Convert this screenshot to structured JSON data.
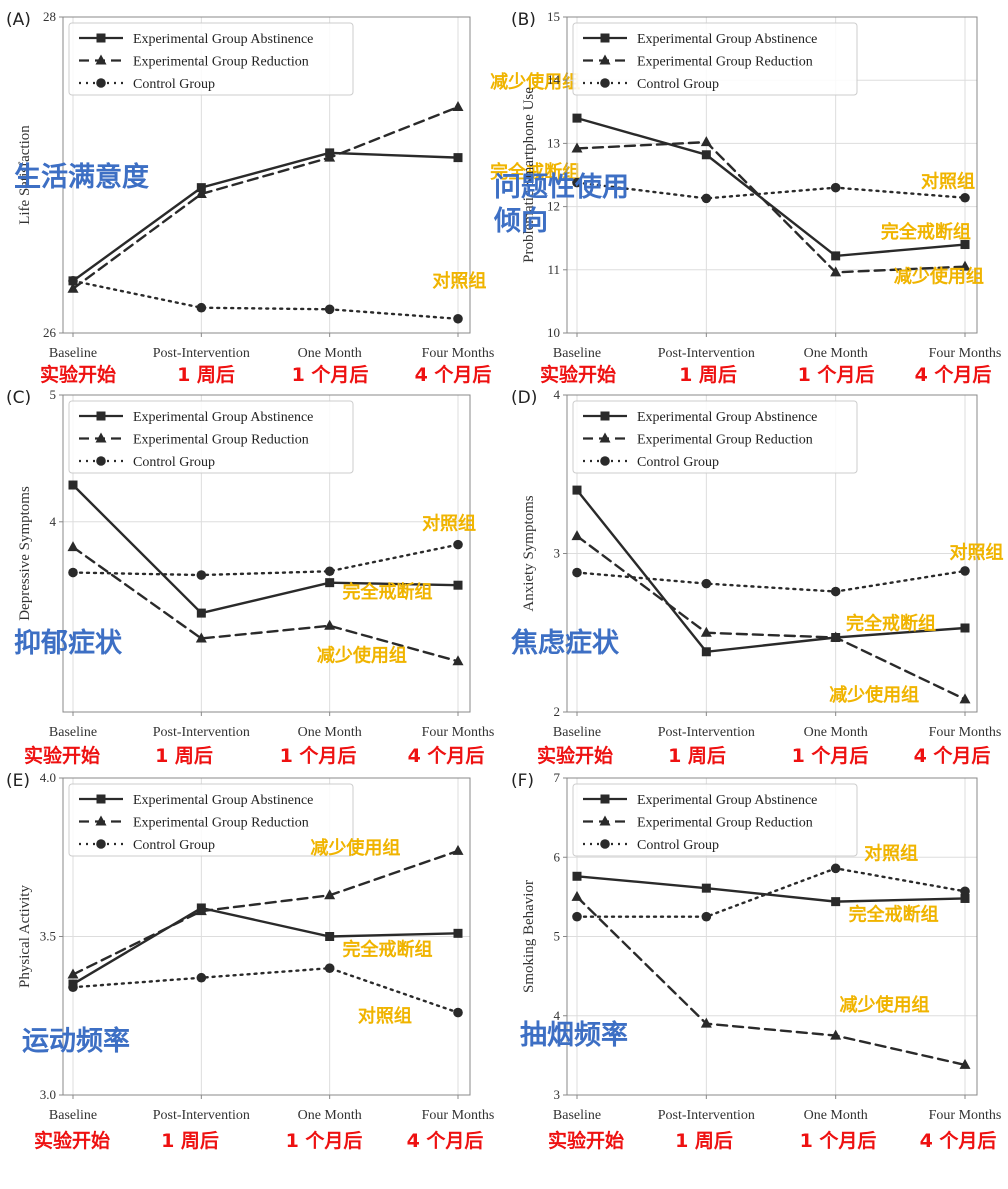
{
  "legend_entries": [
    "Experimental Group Abstinence",
    "Experimental Group Reduction",
    "Control Group"
  ],
  "time_labels": [
    "实验开始",
    "1 周后",
    "1 个月后",
    "4 个月后"
  ],
  "colors": {
    "series": "#2a2a2a",
    "grid": "#dddddd",
    "axis": "#888888",
    "annotation": "#f0b400",
    "timeline": "#ee1111",
    "overlay_title": "#3d6fc4"
  },
  "chart_data": [
    {
      "type": "line",
      "panel_label": "(A)",
      "ylabel": "Life Satisfaction",
      "overlay_title": "生活满意度",
      "categories": [
        "Baseline",
        "Post-Intervention",
        "One Month",
        "Four Months"
      ],
      "ylim": [
        26,
        28
      ],
      "yticks": [
        "28",
        "26"
      ],
      "yticks_values": [
        28,
        26
      ],
      "grid": true,
      "legend_position": "top-left",
      "series": [
        {
          "name": "Experimental Group Abstinence",
          "values": [
            26.33,
            26.92,
            27.14,
            27.11
          ]
        },
        {
          "name": "Experimental Group Reduction",
          "values": [
            26.28,
            26.88,
            27.11,
            27.43
          ]
        },
        {
          "name": "Control Group",
          "values": [
            26.33,
            26.16,
            26.15,
            26.09
          ]
        }
      ],
      "annotations": [
        {
          "text": "减少使用组",
          "x": 3.25,
          "y": 27.55
        },
        {
          "text": "完全戒断组",
          "x": 3.25,
          "y": 26.98
        },
        {
          "text": "对照组",
          "x": 2.8,
          "y": 26.29
        }
      ]
    },
    {
      "type": "line",
      "panel_label": "(B)",
      "ylabel": "Problematic Smartphone Use",
      "overlay_title": "问题性使用\n倾向",
      "categories": [
        "Baseline",
        "Post-Intervention",
        "One Month",
        "Four Months"
      ],
      "ylim": [
        10,
        15
      ],
      "yticks": [
        "15",
        "14",
        "13",
        "12",
        "11",
        "10"
      ],
      "yticks_values": [
        15,
        14,
        13,
        12,
        11,
        10
      ],
      "grid": true,
      "legend_position": "top-left",
      "series": [
        {
          "name": "Experimental Group Abstinence",
          "values": [
            13.4,
            12.82,
            11.22,
            11.4
          ]
        },
        {
          "name": "Experimental Group Reduction",
          "values": [
            12.92,
            13.02,
            10.96,
            11.05
          ]
        },
        {
          "name": "Control Group",
          "values": [
            12.38,
            12.13,
            12.3,
            12.14
          ]
        }
      ],
      "annotations": [
        {
          "text": "对照组",
          "x": 2.66,
          "y": 12.3
        },
        {
          "text": "完全戒断组",
          "x": 2.35,
          "y": 11.5
        },
        {
          "text": "减少使用组",
          "x": 2.45,
          "y": 10.8
        }
      ]
    },
    {
      "type": "line",
      "panel_label": "(C)",
      "ylabel": "Depressive Symptoms",
      "overlay_title": "抑郁症状",
      "categories": [
        "Baseline",
        "Post-Intervention",
        "One Month",
        "Four Months"
      ],
      "ylim": [
        2.5,
        5
      ],
      "yticks": [
        "5",
        "4"
      ],
      "yticks_values": [
        5,
        4
      ],
      "grid": true,
      "legend_position": "top-left",
      "series": [
        {
          "name": "Experimental Group Abstinence",
          "values": [
            4.29,
            3.28,
            3.52,
            3.5
          ]
        },
        {
          "name": "Experimental Group Reduction",
          "values": [
            3.8,
            3.08,
            3.18,
            2.9
          ]
        },
        {
          "name": "Control Group",
          "values": [
            3.6,
            3.58,
            3.61,
            3.82
          ]
        }
      ],
      "annotations": [
        {
          "text": "对照组",
          "x": 2.72,
          "y": 3.94
        },
        {
          "text": "完全戒断组",
          "x": 2.1,
          "y": 3.4
        },
        {
          "text": "减少使用组",
          "x": 1.9,
          "y": 2.9
        }
      ]
    },
    {
      "type": "line",
      "panel_label": "(D)",
      "ylabel": "Anxiety Symptoms",
      "overlay_title": "焦虑症状",
      "categories": [
        "Baseline",
        "Post-Intervention",
        "One Month",
        "Four Months"
      ],
      "ylim": [
        2,
        4
      ],
      "yticks": [
        "4",
        "3",
        "2"
      ],
      "yticks_values": [
        4,
        3,
        2
      ],
      "grid": true,
      "legend_position": "top-left",
      "series": [
        {
          "name": "Experimental Group Abstinence",
          "values": [
            3.4,
            2.38,
            2.47,
            2.53
          ]
        },
        {
          "name": "Experimental Group Reduction",
          "values": [
            3.11,
            2.5,
            2.47,
            2.08
          ]
        },
        {
          "name": "Control Group",
          "values": [
            2.88,
            2.81,
            2.76,
            2.89
          ]
        }
      ],
      "annotations": [
        {
          "text": "对照组",
          "x": 2.88,
          "y": 2.97
        },
        {
          "text": "完全戒断组",
          "x": 2.08,
          "y": 2.52
        },
        {
          "text": "减少使用组",
          "x": 1.95,
          "y": 2.07
        }
      ]
    },
    {
      "type": "line",
      "panel_label": "(E)",
      "ylabel": "Physical Activity",
      "overlay_title": "运动频率",
      "categories": [
        "Baseline",
        "Post-Intervention",
        "One Month",
        "Four Months"
      ],
      "ylim": [
        3.0,
        4.0
      ],
      "yticks": [
        "4.0",
        "3.5",
        "3.0"
      ],
      "yticks_values": [
        4.0,
        3.5,
        3.0
      ],
      "grid": true,
      "legend_position": "top-left",
      "series": [
        {
          "name": "Experimental Group Abstinence",
          "values": [
            3.35,
            3.59,
            3.5,
            3.51
          ]
        },
        {
          "name": "Experimental Group Reduction",
          "values": [
            3.38,
            3.58,
            3.63,
            3.77
          ]
        },
        {
          "name": "Control Group",
          "values": [
            3.34,
            3.37,
            3.4,
            3.26
          ]
        }
      ],
      "annotations": [
        {
          "text": "减少使用组",
          "x": 1.85,
          "y": 3.76
        },
        {
          "text": "完全戒断组",
          "x": 2.1,
          "y": 3.44
        },
        {
          "text": "对照组",
          "x": 2.22,
          "y": 3.23
        }
      ]
    },
    {
      "type": "line",
      "panel_label": "(F)",
      "ylabel": "Smoking Behavior",
      "overlay_title": "抽烟频率",
      "categories": [
        "Baseline",
        "Post-Intervention",
        "One Month",
        "Four Months"
      ],
      "ylim": [
        3,
        7
      ],
      "yticks": [
        "7",
        "6",
        "5",
        "4",
        "3"
      ],
      "yticks_values": [
        7,
        6,
        5,
        4,
        3
      ],
      "grid": true,
      "legend_position": "top-left",
      "series": [
        {
          "name": "Experimental Group Abstinence",
          "values": [
            5.76,
            5.61,
            5.44,
            5.48
          ]
        },
        {
          "name": "Experimental Group Reduction",
          "values": [
            5.5,
            3.9,
            3.75,
            3.38
          ]
        },
        {
          "name": "Control Group",
          "values": [
            5.25,
            5.25,
            5.86,
            5.57
          ]
        }
      ],
      "annotations": [
        {
          "text": "对照组",
          "x": 2.22,
          "y": 5.97
        },
        {
          "text": "完全戒断组",
          "x": 2.1,
          "y": 5.2
        },
        {
          "text": "减少使用组",
          "x": 2.03,
          "y": 4.06
        }
      ]
    }
  ]
}
